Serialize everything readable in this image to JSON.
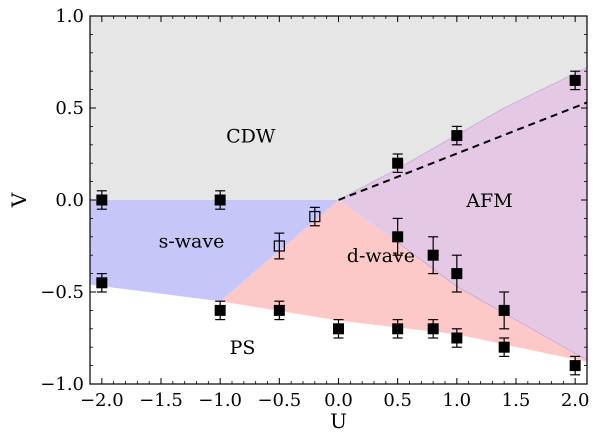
{
  "chart_data": {
    "type": "scatter",
    "xlabel": "U",
    "ylabel": "V",
    "xlim": [
      -2.1,
      2.1
    ],
    "ylim": [
      -1.0,
      1.0
    ],
    "x_ticks": [
      "−2.0",
      "−1.5",
      "−1.0",
      "−0.5",
      "0.0",
      "0.5",
      "1.0",
      "1.5",
      "2.0"
    ],
    "x_tick_values": [
      -2.0,
      -1.5,
      -1.0,
      -0.5,
      0.0,
      0.5,
      1.0,
      1.5,
      2.0
    ],
    "y_ticks": [
      "−1.0",
      "−0.5",
      "0.0",
      "0.5",
      "1.0"
    ],
    "y_tick_values": [
      -1.0,
      -0.5,
      0.0,
      0.5,
      1.0
    ],
    "grid": false,
    "regions": [
      {
        "label": "CDW",
        "color": "#e6e6e6",
        "label_at": [
          -0.95,
          0.35
        ],
        "polygon": [
          [
            -2.1,
            1.0
          ],
          [
            2.1,
            1.0
          ],
          [
            2.1,
            0.72
          ],
          [
            1.4,
            0.5
          ],
          [
            0.5,
            0.17
          ],
          [
            0.0,
            0.0
          ],
          [
            -2.1,
            0.0
          ]
        ]
      },
      {
        "label": "s-wave",
        "color": "#c6c6f8",
        "label_at": [
          -1.52,
          -0.22
        ],
        "polygon": [
          [
            -2.1,
            0.0
          ],
          [
            0.0,
            0.0
          ],
          [
            -1.0,
            -0.55
          ],
          [
            -2.1,
            -0.46
          ]
        ]
      },
      {
        "label": "d-wave",
        "color": "#fdc8c8",
        "label_at": [
          0.07,
          -0.3
        ],
        "polygon": [
          [
            -1.0,
            -0.55
          ],
          [
            0.0,
            0.0
          ],
          [
            0.5,
            -0.23
          ],
          [
            1.0,
            -0.47
          ],
          [
            2.1,
            -0.87
          ],
          [
            2.1,
            -0.88
          ],
          [
            1.0,
            -0.73
          ],
          [
            0.0,
            -0.655
          ]
        ]
      },
      {
        "label": "AFM",
        "color": "#e4c8e4",
        "label_at": [
          1.08,
          0.0
        ],
        "polygon": [
          [
            0.0,
            0.0
          ],
          [
            0.5,
            0.17
          ],
          [
            1.4,
            0.5
          ],
          [
            2.1,
            0.72
          ],
          [
            2.1,
            -0.87
          ],
          [
            1.0,
            -0.47
          ],
          [
            0.5,
            -0.23
          ]
        ]
      },
      {
        "label": "PS",
        "color": "#ffffff",
        "label_at": [
          -0.92,
          -0.8
        ],
        "polygon": []
      }
    ],
    "dashed_line": [
      [
        0.0,
        0.0
      ],
      [
        2.1,
        0.53
      ]
    ],
    "series": [
      {
        "marker": "filled-square",
        "points": [
          {
            "x": -2.0,
            "y": 0.0,
            "err": 0.05
          },
          {
            "x": -1.0,
            "y": 0.0,
            "err": 0.05
          },
          {
            "x": -2.0,
            "y": -0.45,
            "err": 0.05
          },
          {
            "x": -1.0,
            "y": -0.6,
            "err": 0.05
          },
          {
            "x": -0.5,
            "y": -0.6,
            "err": 0.05
          },
          {
            "x": 0.0,
            "y": -0.7,
            "err": 0.05
          },
          {
            "x": 0.5,
            "y": -0.7,
            "err": 0.05
          },
          {
            "x": 0.8,
            "y": -0.7,
            "err": 0.05
          },
          {
            "x": 1.0,
            "y": -0.75,
            "err": 0.05
          },
          {
            "x": 1.4,
            "y": -0.8,
            "err": 0.05
          },
          {
            "x": 2.0,
            "y": -0.9,
            "err": 0.05
          },
          {
            "x": 0.5,
            "y": 0.2,
            "err": 0.05
          },
          {
            "x": 1.0,
            "y": 0.35,
            "err": 0.05
          },
          {
            "x": 2.0,
            "y": 0.65,
            "err": 0.05
          },
          {
            "x": 0.5,
            "y": -0.2,
            "err": 0.1
          },
          {
            "x": 0.8,
            "y": -0.3,
            "err": 0.1
          },
          {
            "x": 1.0,
            "y": -0.4,
            "err": 0.1
          },
          {
            "x": 1.4,
            "y": -0.6,
            "err": 0.1
          }
        ]
      },
      {
        "marker": "open-square",
        "points": [
          {
            "x": -0.5,
            "y": -0.25,
            "err": 0.07
          },
          {
            "x": -0.2,
            "y": -0.09,
            "err": 0.05
          }
        ]
      }
    ]
  }
}
